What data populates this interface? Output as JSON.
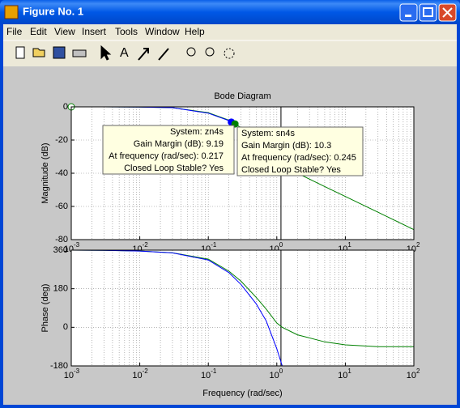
{
  "window": {
    "title": "Figure No. 1",
    "menu": [
      "File",
      "Edit",
      "View",
      "Insert",
      "Tools",
      "Window",
      "Help"
    ]
  },
  "chart_data": [
    {
      "type": "line",
      "title": "Bode Diagram",
      "ylabel": "Magnitude (dB)",
      "xscale": "log",
      "grid": true,
      "x": [
        0.001,
        0.003,
        0.01,
        0.03,
        0.1,
        0.2,
        0.217,
        0.245,
        0.3,
        0.5,
        1,
        2,
        5,
        10,
        30,
        100
      ],
      "series": [
        {
          "name": "sn4s",
          "color": "#008000",
          "values": [
            0,
            0,
            -0.1,
            -0.5,
            -3.5,
            -8,
            -8.8,
            -10.3,
            -12.5,
            -20,
            -34,
            -40,
            -48,
            -54,
            -63.5,
            -74
          ]
        },
        {
          "name": "zn4s",
          "color": "#0000ff",
          "values": [
            0,
            0,
            -0.1,
            -0.5,
            -3.8,
            -8.3,
            -9.19,
            null,
            null,
            null,
            null,
            null,
            null,
            null,
            null,
            null
          ]
        }
      ],
      "xlim": [
        0.001,
        100
      ],
      "ylim": [
        -80,
        0
      ],
      "yticks": [
        0,
        -20,
        -40,
        -60,
        -80
      ],
      "xticks": [
        {
          "value": 0.001,
          "label": "10",
          "exponent": "-3"
        },
        {
          "value": 0.01,
          "label": "10",
          "exponent": "-2"
        },
        {
          "value": 0.1,
          "label": "10",
          "exponent": "-1"
        },
        {
          "value": 1,
          "label": "10",
          "exponent": "0"
        },
        {
          "value": 10,
          "label": "10",
          "exponent": "1"
        },
        {
          "value": 100,
          "label": "10",
          "exponent": "2"
        }
      ],
      "vlines": [
        1.15
      ],
      "points": [
        {
          "x": 0.001,
          "y": 0,
          "color": "#008000",
          "hollow": true
        },
        {
          "x": 0.217,
          "y": -9.19,
          "color": "#0000ff"
        },
        {
          "x": 0.245,
          "y": -10.3,
          "color": "#008000"
        }
      ],
      "annotations": [
        {
          "align": "right",
          "lines": [
            "System: zn4s",
            "Gain Margin (dB): 9.19",
            "At frequency (rad/sec): 0.217",
            "Closed Loop Stable? Yes"
          ]
        },
        {
          "align": "left",
          "lines": [
            "System: sn4s",
            "Gain Margin (dB): 10.3",
            "At frequency (rad/sec): 0.245",
            "Closed Loop Stable? Yes"
          ]
        }
      ]
    },
    {
      "type": "line",
      "ylabel": "Phase (deg)",
      "xlabel": "Frequency  (rad/sec)",
      "xscale": "log",
      "grid": true,
      "x": [
        0.001,
        0.003,
        0.01,
        0.03,
        0.1,
        0.2,
        0.3,
        0.5,
        0.7,
        1,
        1.2,
        2,
        5,
        10,
        30,
        100
      ],
      "series": [
        {
          "name": "sn4s",
          "color": "#008000",
          "values": [
            360,
            359,
            356,
            348,
            318,
            262,
            215,
            140,
            85,
            20,
            0,
            -35,
            -68,
            -82,
            -90,
            -90
          ]
        },
        {
          "name": "zn4s",
          "color": "#0000ff",
          "values": [
            360,
            359,
            356,
            347,
            314,
            255,
            200,
            110,
            30,
            -100,
            -180,
            null,
            null,
            null,
            null,
            null
          ]
        }
      ],
      "xlim": [
        0.001,
        100
      ],
      "ylim": [
        -180,
        360
      ],
      "yticks": [
        360,
        180,
        0,
        -180
      ],
      "xticks": [
        {
          "value": 0.001,
          "label": "10",
          "exponent": "-3"
        },
        {
          "value": 0.01,
          "label": "10",
          "exponent": "-2"
        },
        {
          "value": 0.1,
          "label": "10",
          "exponent": "-1"
        },
        {
          "value": 1,
          "label": "10",
          "exponent": "0"
        },
        {
          "value": 10,
          "label": "10",
          "exponent": "1"
        },
        {
          "value": 100,
          "label": "10",
          "exponent": "2"
        }
      ],
      "vlines": [
        1.15
      ]
    }
  ]
}
